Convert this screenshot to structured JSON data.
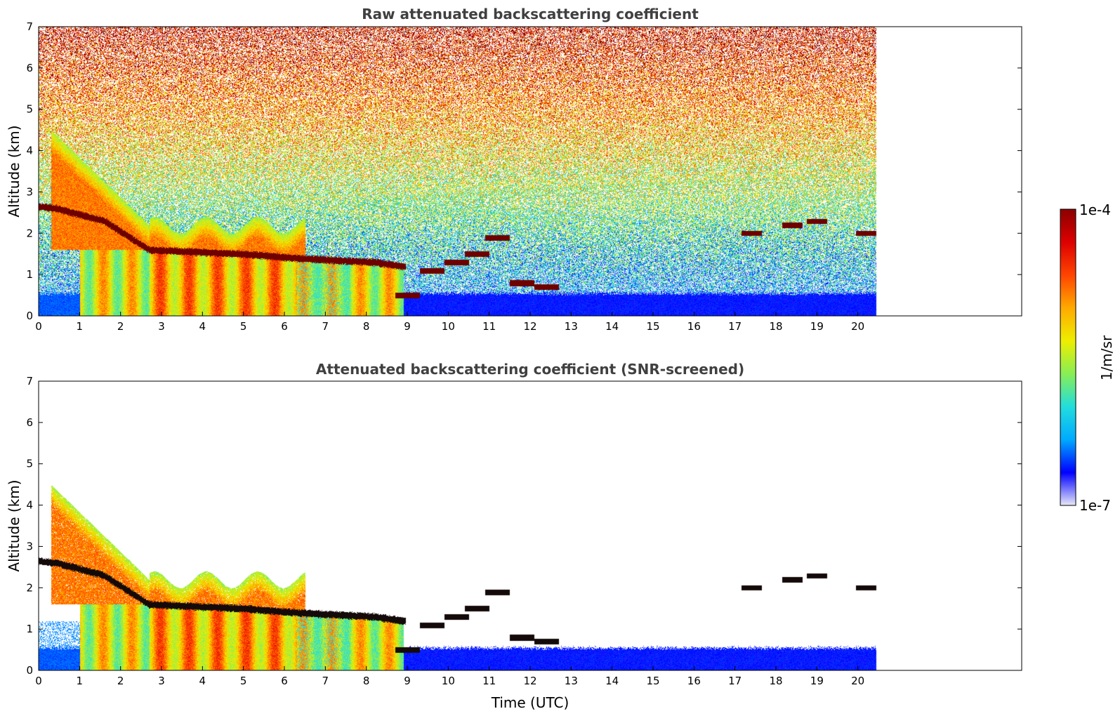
{
  "chart_data": [
    {
      "type": "heatmap",
      "title": "Raw attenuated backscattering coefficient",
      "xlabel": "",
      "ylabel": "Altitude (km)",
      "xlim": [
        0,
        24
      ],
      "ylim": [
        0,
        7
      ],
      "data_extent_x": [
        0,
        20.45
      ],
      "x_ticks": [
        "0",
        "1",
        "2",
        "3",
        "4",
        "5",
        "6",
        "7",
        "8",
        "9",
        "10",
        "11",
        "12",
        "13",
        "14",
        "15",
        "16",
        "17",
        "18",
        "19",
        "20"
      ],
      "y_ticks": [
        "0",
        "1",
        "2",
        "3",
        "4",
        "5",
        "6",
        "7"
      ],
      "screened": false,
      "features": {
        "rising_aerosol_layer": {
          "time_start": 0.3,
          "time_end": 2.7,
          "top_start": 3.9,
          "top_end": 1.6
        },
        "boundary_layer": {
          "time_start": 1.0,
          "time_end": 8.9,
          "top": 1.6
        },
        "cloud_base": [
          [
            0,
            2.65
          ],
          [
            0.45,
            2.6
          ],
          [
            1.6,
            2.3
          ],
          [
            2.7,
            1.6
          ],
          [
            5,
            1.5
          ],
          [
            6.3,
            1.4
          ],
          [
            8.2,
            1.3
          ],
          [
            8.9,
            1.2
          ]
        ],
        "low_cloud_segments": [
          [
            9.0,
            0.5
          ],
          [
            9.6,
            1.1
          ],
          [
            10.2,
            1.3
          ],
          [
            10.7,
            1.5
          ],
          [
            11.2,
            1.9
          ],
          [
            11.8,
            0.8
          ],
          [
            12.4,
            0.7
          ]
        ],
        "high_cloud_segments": [
          [
            17.4,
            2.0
          ],
          [
            18.4,
            2.2
          ],
          [
            19.0,
            2.3
          ],
          [
            20.2,
            2.0
          ]
        ],
        "surface_layer_top": 0.5
      }
    },
    {
      "type": "heatmap",
      "title": "Attenuated backscattering coefficient (SNR-screened)",
      "xlabel": "Time (UTC)",
      "ylabel": "Altitude (km)",
      "xlim": [
        0,
        24
      ],
      "ylim": [
        0,
        7
      ],
      "data_extent_x": [
        0,
        20.45
      ],
      "x_ticks": [
        "0",
        "1",
        "2",
        "3",
        "4",
        "5",
        "6",
        "7",
        "8",
        "9",
        "10",
        "11",
        "12",
        "13",
        "14",
        "15",
        "16",
        "17",
        "18",
        "19",
        "20"
      ],
      "y_ticks": [
        "0",
        "1",
        "2",
        "3",
        "4",
        "5",
        "6",
        "7"
      ],
      "screened": true
    }
  ],
  "colorbar": {
    "label": "1/m/sr",
    "min_label": "1e-7",
    "max_label": "1e-4",
    "scale": "log",
    "colormap": [
      "#e8e8f8",
      "#0000ff",
      "#00aaff",
      "#22dddd",
      "#88ee55",
      "#eeee00",
      "#ffaa00",
      "#ff4400",
      "#dd0000",
      "#8b0000"
    ]
  }
}
